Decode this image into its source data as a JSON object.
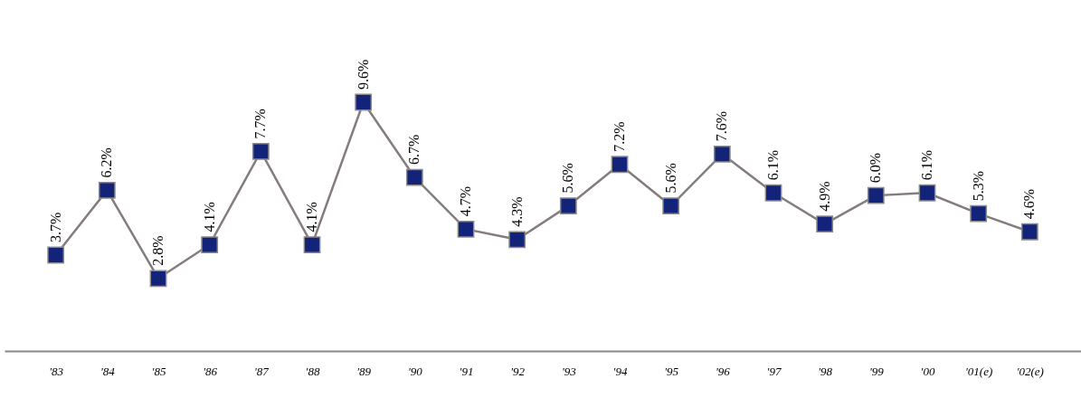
{
  "chart_data": {
    "type": "line",
    "categories": [
      "'83",
      "'84",
      "'85",
      "'86",
      "'87",
      "'88",
      "'89",
      "'90",
      "'91",
      "'92",
      "'93",
      "'94",
      "'95",
      "'96",
      "'97",
      "'98",
      "'99",
      "'00",
      "'01(e)",
      "'02(e)"
    ],
    "series": [
      {
        "color": "#857c7c",
        "values": [
          3.7,
          6.2,
          2.8,
          4.1,
          7.7,
          4.1,
          9.6,
          6.7,
          4.7,
          4.3,
          5.6,
          7.2,
          5.6,
          7.6,
          6.1,
          4.9,
          6.0,
          6.1,
          5.3,
          4.6
        ],
        "value_labels": [
          "3.7%",
          "6.2%",
          "2.8%",
          "4.1%",
          "7.7%",
          "4.1%",
          "9.6%",
          "6.7%",
          "4.7%",
          "4.3%",
          "5.6%",
          "7.2%",
          "5.6%",
          "7.6%",
          "6.1%",
          "4.9%",
          "6.0%",
          "6.1%",
          "5.3%",
          "4.6%"
        ]
      }
    ],
    "marker": "square",
    "line_style": "solid",
    "tick_labels": "x"
  }
}
